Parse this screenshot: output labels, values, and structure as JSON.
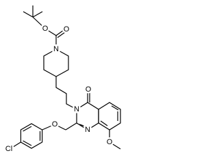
{
  "atoms": [
    "O",
    "O",
    "N",
    "O",
    "N",
    "N",
    "O",
    "O",
    "Cl"
  ]
}
